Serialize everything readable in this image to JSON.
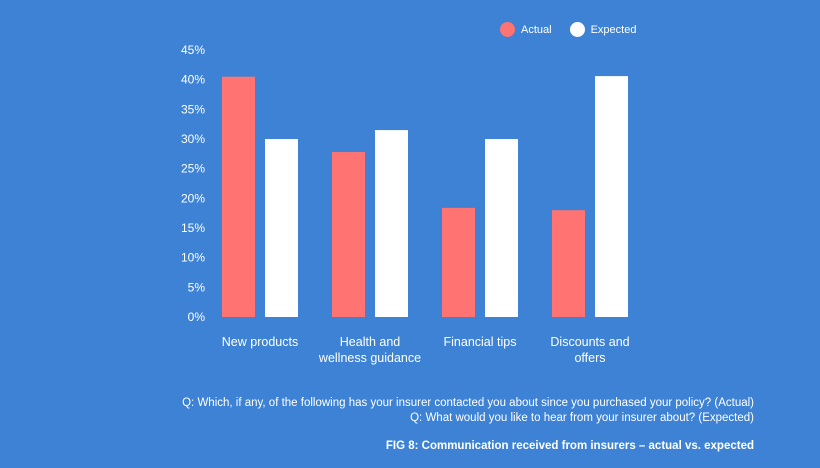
{
  "chart_data": {
    "type": "bar",
    "categories": [
      [
        "New products"
      ],
      [
        "Health and",
        "wellness guidance"
      ],
      [
        "Financial tips"
      ],
      [
        "Discounts and",
        "offers"
      ]
    ],
    "series": [
      {
        "name": "Actual",
        "color": "#ff7373",
        "values": [
          40.5,
          27.8,
          18.4,
          18.0
        ]
      },
      {
        "name": "Expected",
        "color": "#ffffff",
        "values": [
          30.0,
          31.5,
          30.0,
          40.6
        ]
      }
    ],
    "yticks": [
      "0%",
      "5%",
      "10%",
      "15%",
      "20%",
      "25%",
      "30%",
      "35%",
      "40%",
      "45%"
    ],
    "ylim": [
      0,
      45
    ],
    "legend_position": "top-right",
    "grid": false
  },
  "footer": {
    "question_actual": "Q: Which, if any, of the following has your insurer contacted you about since you purchased your policy? (Actual)",
    "question_expected": "Q: What would you like to hear from your insurer about? (Expected)",
    "caption": "FIG 8: Communication received from insurers – actual vs. expected"
  }
}
